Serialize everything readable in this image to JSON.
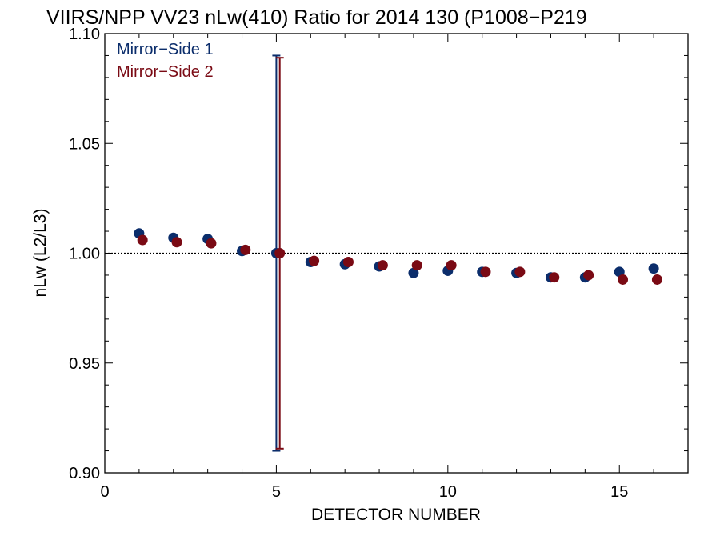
{
  "chart_data": {
    "type": "scatter",
    "title": "VIIRS/NPP VV23 nLw(410) Ratio for 2014 130 (P1008−P219",
    "xlabel": "DETECTOR NUMBER",
    "ylabel": "nLw (L2/L3)",
    "xlim": [
      0,
      17
    ],
    "ylim": [
      0.9,
      1.1
    ],
    "x_ticks": [
      0,
      5,
      10,
      15
    ],
    "x_tick_labels": [
      "0",
      "5",
      "10",
      "15"
    ],
    "y_ticks": [
      0.9,
      0.95,
      1.0,
      1.05,
      1.1
    ],
    "y_tick_labels": [
      "0.90",
      "0.95",
      "1.00",
      "1.05",
      "1.10"
    ],
    "reference_line": {
      "y": 1.0,
      "style": "dotted"
    },
    "grid": false,
    "legend_position": "top-left",
    "series": [
      {
        "name": "Mirror−Side 1",
        "color": "#0b2d6b",
        "x": [
          1,
          2,
          3,
          4,
          5,
          6,
          7,
          8,
          9,
          10,
          11,
          12,
          13,
          14,
          15,
          16
        ],
        "y": [
          1.009,
          1.007,
          1.0065,
          1.001,
          1.0,
          0.996,
          0.995,
          0.994,
          0.991,
          0.992,
          0.9915,
          0.991,
          0.989,
          0.989,
          0.9915,
          0.993
        ],
        "error_bar": {
          "x": 5,
          "low": 0.91,
          "high": 1.09
        }
      },
      {
        "name": "Mirror−Side 2",
        "color": "#7a0a14",
        "x": [
          1.1,
          2.1,
          3.1,
          4.1,
          5.1,
          6.1,
          7.1,
          8.1,
          9.1,
          10.1,
          11.1,
          12.1,
          13.1,
          14.1,
          15.1,
          16.1
        ],
        "y": [
          1.006,
          1.005,
          1.0045,
          1.0015,
          1.0,
          0.9965,
          0.996,
          0.9945,
          0.9945,
          0.9945,
          0.9915,
          0.9915,
          0.989,
          0.99,
          0.988,
          0.988
        ],
        "error_bar": {
          "x": 5.1,
          "low": 0.911,
          "high": 1.089
        }
      }
    ]
  }
}
